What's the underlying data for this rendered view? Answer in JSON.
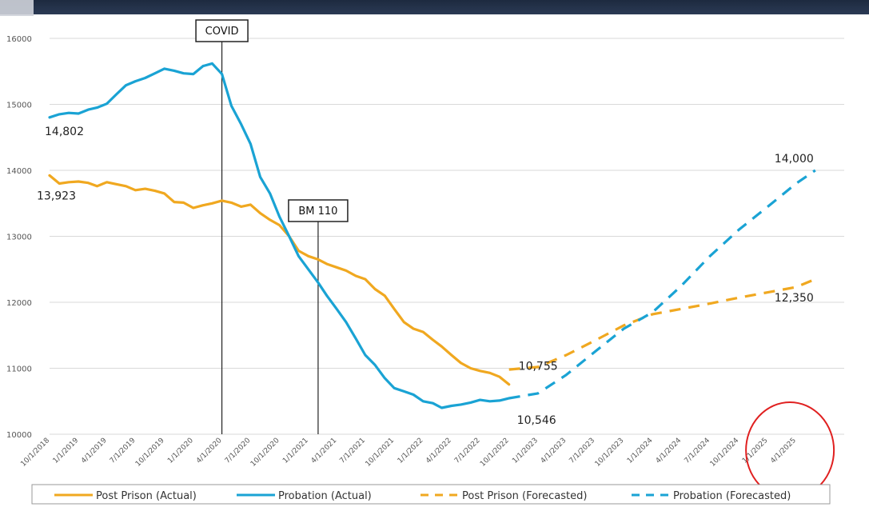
{
  "chart_data": {
    "type": "line",
    "title": "",
    "xlabel": "",
    "ylabel": "",
    "ylim": [
      10000,
      16000
    ],
    "y_ticks": [
      "10000",
      "11000",
      "12000",
      "13000",
      "14000",
      "15000",
      "16000"
    ],
    "x_ticks": [
      "10/1/2018",
      "1/1/2019",
      "4/1/2019",
      "7/1/2019",
      "10/1/2019",
      "1/1/2020",
      "4/1/2020",
      "7/1/2020",
      "10/1/2020",
      "1/1/2021",
      "4/1/2021",
      "7/1/2021",
      "10/1/2021",
      "1/1/2022",
      "4/1/2022",
      "7/1/2022",
      "10/1/2022",
      "1/1/2023",
      "4/1/2023",
      "7/1/2023",
      "10/1/2023",
      "1/1/2024",
      "4/1/2024",
      "7/1/2024",
      "10/1/2024",
      "1/1/2025",
      "4/1/2025"
    ],
    "grid": true,
    "legend_position": "bottom",
    "series": [
      {
        "name": "Post Prison (Actual)",
        "color": "#f0a820",
        "style": "solid",
        "x": [
          "10/1/2018",
          "11/1/2018",
          "12/1/2018",
          "1/1/2019",
          "2/1/2019",
          "3/1/2019",
          "4/1/2019",
          "5/1/2019",
          "6/1/2019",
          "7/1/2019",
          "8/1/2019",
          "9/1/2019",
          "10/1/2019",
          "11/1/2019",
          "12/1/2019",
          "1/1/2020",
          "2/1/2020",
          "3/1/2020",
          "4/1/2020",
          "5/1/2020",
          "6/1/2020",
          "7/1/2020",
          "8/1/2020",
          "9/1/2020",
          "10/1/2020",
          "11/1/2020",
          "12/1/2020",
          "1/1/2021",
          "2/1/2021",
          "3/1/2021",
          "4/1/2021",
          "5/1/2021",
          "6/1/2021",
          "7/1/2021",
          "8/1/2021",
          "9/1/2021",
          "10/1/2021",
          "11/1/2021",
          "12/1/2021",
          "1/1/2022",
          "2/1/2022",
          "3/1/2022",
          "4/1/2022",
          "5/1/2022",
          "6/1/2022",
          "7/1/2022",
          "8/1/2022",
          "9/1/2022",
          "10/1/2022"
        ],
        "values": [
          13923,
          13800,
          13820,
          13830,
          13810,
          13760,
          13820,
          13790,
          13760,
          13700,
          13720,
          13690,
          13650,
          13520,
          13510,
          13430,
          13470,
          13500,
          13540,
          13510,
          13450,
          13480,
          13350,
          13250,
          13170,
          13000,
          12780,
          12700,
          12650,
          12580,
          12530,
          12480,
          12400,
          12350,
          12200,
          12100,
          11900,
          11700,
          11600,
          11550,
          11430,
          11330,
          11200,
          11080,
          11000,
          10960,
          10930,
          10870,
          10755
        ]
      },
      {
        "name": "Probation (Actual)",
        "color": "#1aa3d4",
        "style": "solid",
        "x": [
          "10/1/2018",
          "11/1/2018",
          "12/1/2018",
          "1/1/2019",
          "2/1/2019",
          "3/1/2019",
          "4/1/2019",
          "5/1/2019",
          "6/1/2019",
          "7/1/2019",
          "8/1/2019",
          "9/1/2019",
          "10/1/2019",
          "11/1/2019",
          "12/1/2019",
          "1/1/2020",
          "2/1/2020",
          "3/1/2020",
          "4/1/2020",
          "5/1/2020",
          "6/1/2020",
          "7/1/2020",
          "8/1/2020",
          "9/1/2020",
          "10/1/2020",
          "11/1/2020",
          "12/1/2020",
          "1/1/2021",
          "2/1/2021",
          "3/1/2021",
          "4/1/2021",
          "5/1/2021",
          "6/1/2021",
          "7/1/2021",
          "8/1/2021",
          "9/1/2021",
          "10/1/2021",
          "11/1/2021",
          "12/1/2021",
          "1/1/2022",
          "2/1/2022",
          "3/1/2022",
          "4/1/2022",
          "5/1/2022",
          "6/1/2022",
          "7/1/2022",
          "8/1/2022",
          "9/1/2022",
          "10/1/2022"
        ],
        "values": [
          14802,
          14850,
          14870,
          14860,
          14920,
          14950,
          15010,
          15150,
          15290,
          15350,
          15400,
          15470,
          15540,
          15510,
          15470,
          15460,
          15580,
          15620,
          15460,
          14980,
          14700,
          14400,
          13900,
          13650,
          13300,
          13000,
          12700,
          12500,
          12300,
          12100,
          11900,
          11700,
          11450,
          11200,
          11050,
          10850,
          10700,
          10650,
          10600,
          10500,
          10470,
          10400,
          10430,
          10450,
          10480,
          10520,
          10500,
          10510,
          10546
        ]
      },
      {
        "name": "Post Prison (Forecasted)",
        "color": "#f0a820",
        "style": "dashed",
        "x": [
          "10/1/2022",
          "1/1/2023",
          "4/1/2023",
          "7/1/2023",
          "10/1/2023",
          "1/1/2024",
          "4/1/2024",
          "7/1/2024",
          "10/1/2024",
          "1/1/2025",
          "4/1/2025",
          "6/1/2025"
        ],
        "values": [
          10980,
          11020,
          11200,
          11420,
          11650,
          11820,
          11900,
          11980,
          12070,
          12150,
          12230,
          12350
        ]
      },
      {
        "name": "Probation (Forecasted)",
        "color": "#1aa3d4",
        "style": "dashed",
        "x": [
          "10/1/2022",
          "1/1/2023",
          "4/1/2023",
          "7/1/2023",
          "10/1/2023",
          "1/1/2024",
          "4/1/2024",
          "7/1/2024",
          "10/1/2024",
          "1/1/2025",
          "4/1/2025",
          "6/1/2025"
        ],
        "values": [
          10546,
          10620,
          10900,
          11250,
          11600,
          11850,
          12250,
          12700,
          13100,
          13450,
          13800,
          14000
        ]
      }
    ],
    "data_labels": [
      {
        "text": "14,802",
        "series": "Probation (Actual)",
        "x": "10/1/2018",
        "value": 14802
      },
      {
        "text": "13,923",
        "series": "Post Prison (Actual)",
        "x": "10/1/2018",
        "value": 13923
      },
      {
        "text": "10,755",
        "series": "Post Prison (Actual)",
        "x": "10/1/2022",
        "value": 10755
      },
      {
        "text": "10,546",
        "series": "Probation (Actual)",
        "x": "10/1/2022",
        "value": 10546
      },
      {
        "text": "14,000",
        "series": "Probation (Forecasted)",
        "x": "6/1/2025",
        "value": 14000
      },
      {
        "text": "12,350",
        "series": "Post Prison (Forecasted)",
        "x": "6/1/2025",
        "value": 12350
      }
    ],
    "annotations": [
      {
        "text": "COVID",
        "x": "4/1/2020"
      },
      {
        "text": "BM 110",
        "x": "2/1/2021"
      }
    ],
    "highlight": {
      "shape": "circle",
      "color": "#e02020",
      "around": [
        "1/1/2025",
        "4/1/2025"
      ]
    }
  }
}
